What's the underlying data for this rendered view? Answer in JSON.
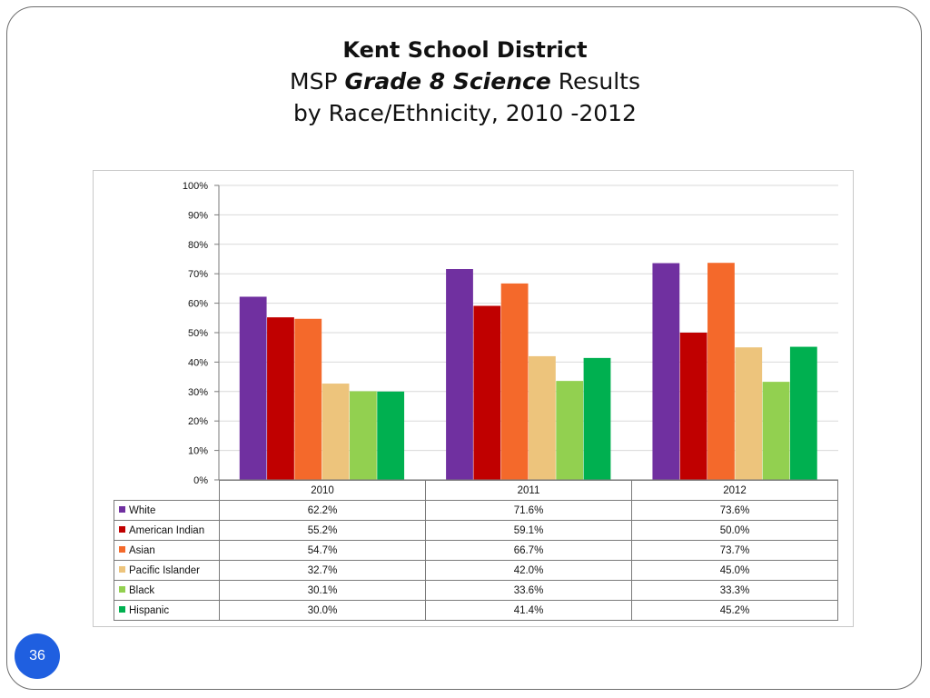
{
  "slide": {
    "title_line1": "Kent School District",
    "title_line2_prefix": "MSP ",
    "title_line2_emph": "Grade 8 Science",
    "title_line2_suffix": " Results",
    "title_line3": "by Race/Ethnicity, 2010 -2012",
    "page_number": "36"
  },
  "chart_data": {
    "type": "bar",
    "categories": [
      "2010",
      "2011",
      "2012"
    ],
    "ylim": [
      0,
      100
    ],
    "yticks": [
      "0%",
      "10%",
      "20%",
      "30%",
      "40%",
      "50%",
      "60%",
      "70%",
      "80%",
      "90%",
      "100%"
    ],
    "grid": true,
    "legend": "data table below chart",
    "series": [
      {
        "name": "White",
        "color": "#7030a0",
        "values": [
          62.2,
          71.6,
          73.6
        ],
        "labels": [
          "62.2%",
          "71.6%",
          "73.6%"
        ]
      },
      {
        "name": "American Indian",
        "color": "#c00000",
        "values": [
          55.2,
          59.1,
          50.0
        ],
        "labels": [
          "55.2%",
          "59.1%",
          "50.0%"
        ]
      },
      {
        "name": "Asian",
        "color": "#f4692b",
        "values": [
          54.7,
          66.7,
          73.7
        ],
        "labels": [
          "54.7%",
          "66.7%",
          "73.7%"
        ]
      },
      {
        "name": "Pacific Islander",
        "color": "#edc47c",
        "values": [
          32.7,
          42.0,
          45.0
        ],
        "labels": [
          "32.7%",
          "42.0%",
          "45.0%"
        ]
      },
      {
        "name": "Black",
        "color": "#92d050",
        "values": [
          30.1,
          33.6,
          33.3
        ],
        "labels": [
          "30.1%",
          "33.6%",
          "33.3%"
        ]
      },
      {
        "name": "Hispanic",
        "color": "#00b050",
        "values": [
          30.0,
          41.4,
          45.2
        ],
        "labels": [
          "30.0%",
          "41.4%",
          "45.2%"
        ]
      }
    ]
  }
}
